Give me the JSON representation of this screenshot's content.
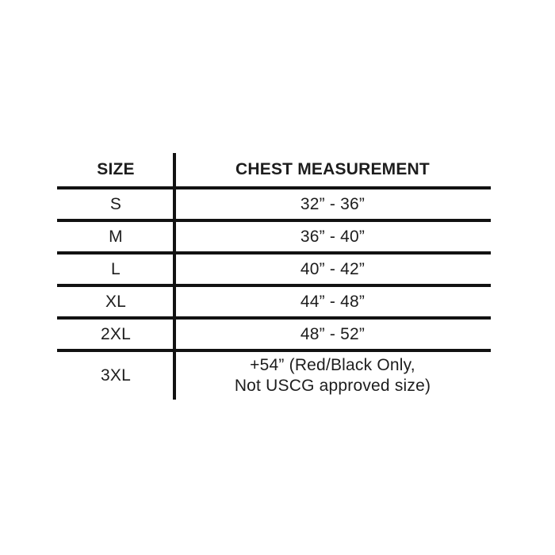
{
  "page": {
    "background": "#ffffff"
  },
  "colors": {
    "line": "#121212",
    "text": "#1d1d1d"
  },
  "chart_data": {
    "type": "table",
    "title": "",
    "columns": [
      "SIZE",
      "CHEST MEASUREMENT"
    ],
    "rows": [
      [
        "S",
        "32” - 36”"
      ],
      [
        "M",
        "36” - 40”"
      ],
      [
        "L",
        "40” - 42”"
      ],
      [
        "XL",
        "44” - 48”"
      ],
      [
        "2XL",
        "48” - 52”"
      ],
      [
        "3XL",
        "+54” (Red/Black Only, Not USCG approved size)"
      ]
    ]
  },
  "table": {
    "header": {
      "size": "SIZE",
      "measurement": "CHEST MEASUREMENT"
    },
    "rows": [
      {
        "size": "S",
        "measurement": "32” - 36”"
      },
      {
        "size": "M",
        "measurement": "36” - 40”"
      },
      {
        "size": "L",
        "measurement": "40” - 42”"
      },
      {
        "size": "XL",
        "measurement": "44” - 48”"
      },
      {
        "size": "2XL",
        "measurement": "48” - 52”"
      },
      {
        "size": "3XL",
        "measurement": "+54” (Red/Black Only,\nNot USCG approved size)"
      }
    ]
  }
}
